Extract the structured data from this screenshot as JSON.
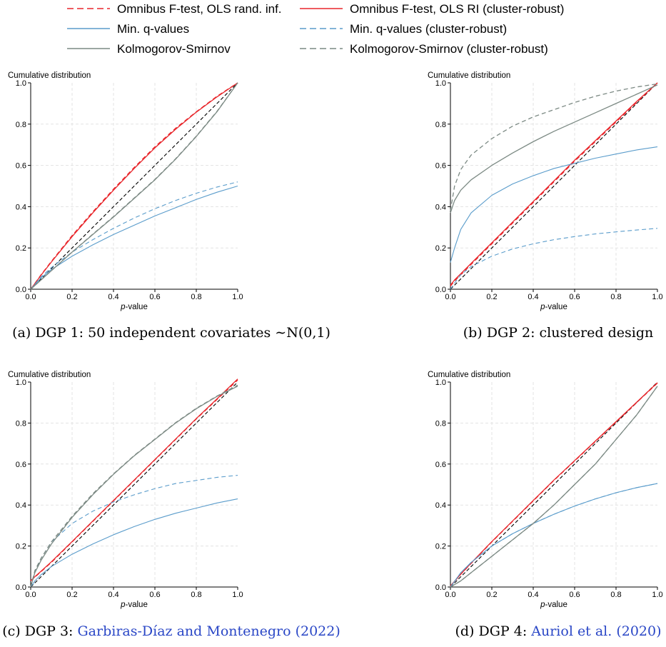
{
  "legend": {
    "items": [
      {
        "label": "Omnibus F-test, OLS rand. inf.",
        "color": "#e8262b",
        "dash": "dashed"
      },
      {
        "label": "Omnibus F-test, OLS RI (cluster-robust)",
        "color": "#e8262b",
        "dash": "solid"
      },
      {
        "label": "Min. q-values",
        "color": "#5a9ccb",
        "dash": "solid"
      },
      {
        "label": "Min. q-values (cluster-robust)",
        "color": "#5a9ccb",
        "dash": "dashed"
      },
      {
        "label": "Kolmogorov-Smirnov",
        "color": "#7c8a84",
        "dash": "solid"
      },
      {
        "label": "Kolmogorov-Smirnov (cluster-robust)",
        "color": "#7c8a84",
        "dash": "dashed"
      }
    ]
  },
  "colors": {
    "red": "#e8262b",
    "blue": "#5a9ccb",
    "gray": "#7c8a84",
    "diagonal": "#000000",
    "grid": "#e3e3e3"
  },
  "chart_data": [
    {
      "type": "line",
      "ylabel": "Cumulative distribution",
      "xlabel": "p-value",
      "xlim": [
        0,
        1
      ],
      "ylim": [
        0,
        1
      ],
      "xticks": [
        "0.0",
        "0.2",
        "0.4",
        "0.6",
        "0.8",
        "1.0"
      ],
      "yticks": [
        "0.0",
        "0.2",
        "0.4",
        "0.6",
        "0.8",
        "1.0"
      ],
      "grid": true,
      "caption": "(a) DGP 1: 50 independent covariates ∼N(0,1)",
      "x": [
        0,
        0.05,
        0.1,
        0.2,
        0.3,
        0.4,
        0.5,
        0.6,
        0.7,
        0.8,
        0.9,
        1.0
      ],
      "series": [
        {
          "name": "45-degree line",
          "style": "diag",
          "values": [
            0,
            0.05,
            0.1,
            0.2,
            0.3,
            0.4,
            0.5,
            0.6,
            0.7,
            0.8,
            0.9,
            1.0
          ]
        },
        {
          "name": "Omnibus F-test, OLS rand. inf.",
          "style": "red-dash",
          "values": [
            0,
            0.07,
            0.135,
            0.26,
            0.375,
            0.485,
            0.59,
            0.69,
            0.78,
            0.86,
            0.935,
            1.0
          ]
        },
        {
          "name": "Omnibus F-test, OLS RI (cluster-robust)",
          "style": "red-solid",
          "values": [
            0,
            0.068,
            0.132,
            0.255,
            0.37,
            0.48,
            0.585,
            0.685,
            0.775,
            0.858,
            0.932,
            1.0
          ]
        },
        {
          "name": "Min. q-values",
          "style": "blue-solid",
          "values": [
            0,
            0.055,
            0.095,
            0.16,
            0.215,
            0.265,
            0.31,
            0.355,
            0.395,
            0.435,
            0.47,
            0.5
          ]
        },
        {
          "name": "Min. q-values (cluster-robust)",
          "style": "blue-dash",
          "values": [
            0,
            0.06,
            0.105,
            0.18,
            0.24,
            0.295,
            0.345,
            0.39,
            0.43,
            0.465,
            0.495,
            0.52
          ]
        },
        {
          "name": "Kolmogorov-Smirnov",
          "style": "gray-solid",
          "values": [
            0,
            0.045,
            0.09,
            0.18,
            0.265,
            0.35,
            0.44,
            0.53,
            0.63,
            0.74,
            0.86,
            1.0
          ]
        },
        {
          "name": "Kolmogorov-Smirnov (cluster-robust)",
          "style": "gray-dash",
          "values": [
            0,
            0.045,
            0.09,
            0.18,
            0.267,
            0.352,
            0.442,
            0.532,
            0.632,
            0.742,
            0.862,
            1.0
          ]
        }
      ]
    },
    {
      "type": "line",
      "ylabel": "Cumulative distribution",
      "xlabel": "p-value",
      "xlim": [
        0,
        1
      ],
      "ylim": [
        0,
        1
      ],
      "xticks": [
        "0.0",
        "0.2",
        "0.4",
        "0.6",
        "0.8",
        "1.0"
      ],
      "yticks": [
        "0.0",
        "0.2",
        "0.4",
        "0.6",
        "0.8",
        "1.0"
      ],
      "grid": true,
      "caption": "(b) DGP 2: clustered design",
      "x": [
        0,
        0.02,
        0.05,
        0.1,
        0.2,
        0.3,
        0.4,
        0.5,
        0.6,
        0.7,
        0.8,
        0.9,
        1.0
      ],
      "series": [
        {
          "name": "45-degree line",
          "style": "diag",
          "values": [
            0,
            0.02,
            0.05,
            0.1,
            0.2,
            0.3,
            0.4,
            0.5,
            0.6,
            0.7,
            0.8,
            0.9,
            1.0
          ]
        },
        {
          "name": "Omnibus F-test, OLS rand. inf.",
          "style": "red-dash",
          "values": [
            0.015,
            0.04,
            0.07,
            0.12,
            0.22,
            0.32,
            0.42,
            0.52,
            0.62,
            0.715,
            0.81,
            0.905,
            1.0
          ]
        },
        {
          "name": "Omnibus F-test, OLS RI (cluster-robust)",
          "style": "red-solid",
          "values": [
            0.02,
            0.045,
            0.075,
            0.125,
            0.225,
            0.325,
            0.425,
            0.525,
            0.625,
            0.72,
            0.815,
            0.91,
            1.0
          ]
        },
        {
          "name": "Min. q-values",
          "style": "blue-solid",
          "values": [
            0.13,
            0.2,
            0.29,
            0.37,
            0.455,
            0.51,
            0.55,
            0.585,
            0.61,
            0.635,
            0.655,
            0.675,
            0.69
          ]
        },
        {
          "name": "Min. q-values (cluster-robust)",
          "style": "blue-dash",
          "values": [
            0.0,
            0.03,
            0.07,
            0.11,
            0.16,
            0.195,
            0.22,
            0.24,
            0.255,
            0.268,
            0.278,
            0.287,
            0.295
          ]
        },
        {
          "name": "Kolmogorov-Smirnov",
          "style": "gray-solid",
          "values": [
            0.37,
            0.43,
            0.48,
            0.53,
            0.6,
            0.66,
            0.715,
            0.765,
            0.81,
            0.855,
            0.9,
            0.945,
            0.99
          ]
        },
        {
          "name": "Kolmogorov-Smirnov (cluster-robust)",
          "style": "gray-dash",
          "values": [
            0.38,
            0.5,
            0.58,
            0.65,
            0.73,
            0.79,
            0.835,
            0.87,
            0.905,
            0.935,
            0.96,
            0.98,
            0.995
          ]
        }
      ]
    },
    {
      "type": "line",
      "ylabel": "Cumulative distribution",
      "xlabel": "p-value",
      "xlim": [
        0,
        1
      ],
      "ylim": [
        0,
        1
      ],
      "xticks": [
        "0.0",
        "0.2",
        "0.4",
        "0.6",
        "0.8",
        "1.0"
      ],
      "yticks": [
        "0.0",
        "0.2",
        "0.4",
        "0.6",
        "0.8",
        "1.0"
      ],
      "grid": true,
      "caption_prefix": "(c) DGP 3: ",
      "caption_link": "Garbiras-Díaz and Montenegro (2022)",
      "x": [
        0,
        0.02,
        0.05,
        0.1,
        0.2,
        0.3,
        0.4,
        0.5,
        0.6,
        0.7,
        0.8,
        0.9,
        1.0
      ],
      "series": [
        {
          "name": "45-degree line",
          "style": "diag",
          "values": [
            0,
            0.02,
            0.05,
            0.1,
            0.2,
            0.3,
            0.4,
            0.5,
            0.6,
            0.7,
            0.8,
            0.9,
            1.0
          ]
        },
        {
          "name": "Omnibus F-test, OLS rand. inf.",
          "style": "red-dash",
          "values": [
            0.03,
            0.048,
            0.075,
            0.12,
            0.22,
            0.32,
            0.42,
            0.52,
            0.62,
            0.72,
            0.82,
            0.915,
            1.01
          ]
        },
        {
          "name": "Omnibus F-test, OLS RI (cluster-robust)",
          "style": "red-solid",
          "values": [
            0.03,
            0.05,
            0.077,
            0.123,
            0.222,
            0.322,
            0.422,
            0.522,
            0.622,
            0.722,
            0.822,
            0.918,
            1.015
          ]
        },
        {
          "name": "Min. q-values",
          "style": "blue-solid",
          "values": [
            0,
            0.03,
            0.06,
            0.1,
            0.16,
            0.21,
            0.255,
            0.295,
            0.33,
            0.36,
            0.385,
            0.41,
            0.43
          ]
        },
        {
          "name": "Min. q-values (cluster-robust)",
          "style": "blue-dash",
          "values": [
            0,
            0.07,
            0.14,
            0.22,
            0.31,
            0.37,
            0.415,
            0.45,
            0.48,
            0.505,
            0.52,
            0.535,
            0.545
          ]
        },
        {
          "name": "Kolmogorov-Smirnov",
          "style": "gray-solid",
          "values": [
            0,
            0.07,
            0.13,
            0.21,
            0.34,
            0.45,
            0.55,
            0.64,
            0.72,
            0.8,
            0.87,
            0.93,
            0.98
          ]
        },
        {
          "name": "Kolmogorov-Smirnov (cluster-robust)",
          "style": "gray-dash",
          "values": [
            0,
            0.08,
            0.14,
            0.22,
            0.345,
            0.455,
            0.552,
            0.642,
            0.722,
            0.802,
            0.872,
            0.932,
            0.985
          ]
        }
      ]
    },
    {
      "type": "line",
      "ylabel": "Cumulative distribution",
      "xlabel": "p-value",
      "xlim": [
        0,
        1
      ],
      "ylim": [
        0,
        1
      ],
      "xticks": [
        "0.0",
        "0.2",
        "0.4",
        "0.6",
        "0.8",
        "1.0"
      ],
      "yticks": [
        "0.0",
        "0.2",
        "0.4",
        "0.6",
        "0.8",
        "1.0"
      ],
      "grid": true,
      "caption_prefix": "(d) DGP 4: ",
      "caption_link": "Auriol et al. (2020)",
      "x": [
        0,
        0.05,
        0.1,
        0.2,
        0.3,
        0.4,
        0.5,
        0.6,
        0.7,
        0.8,
        0.9,
        1.0
      ],
      "series": [
        {
          "name": "45-degree line",
          "style": "diag",
          "values": [
            0,
            0.05,
            0.1,
            0.2,
            0.3,
            0.4,
            0.5,
            0.6,
            0.7,
            0.8,
            0.9,
            1.0
          ]
        },
        {
          "name": "Omnibus F-test, OLS rand. inf.",
          "style": "red-dash",
          "values": [
            0.005,
            0.062,
            0.115,
            0.22,
            0.32,
            0.42,
            0.52,
            0.615,
            0.71,
            0.805,
            0.9,
            0.995
          ]
        },
        {
          "name": "Omnibus F-test, OLS RI (cluster-robust)",
          "style": "red-solid",
          "values": [
            0.005,
            0.063,
            0.117,
            0.222,
            0.322,
            0.422,
            0.522,
            0.617,
            0.712,
            0.807,
            0.902,
            0.997
          ]
        },
        {
          "name": "Min. q-values",
          "style": "blue-solid",
          "values": [
            0,
            0.07,
            0.12,
            0.2,
            0.26,
            0.31,
            0.355,
            0.395,
            0.43,
            0.46,
            0.485,
            0.505
          ]
        },
        {
          "name": "Min. q-values (cluster-robust)",
          "style": "blue-dash",
          "values": [
            0,
            0.07,
            0.12,
            0.2,
            0.26,
            0.31,
            0.355,
            0.395,
            0.43,
            0.46,
            0.485,
            0.505
          ]
        },
        {
          "name": "Kolmogorov-Smirnov",
          "style": "gray-solid",
          "values": [
            0,
            0.03,
            0.07,
            0.15,
            0.23,
            0.31,
            0.4,
            0.5,
            0.6,
            0.72,
            0.84,
            0.98
          ]
        },
        {
          "name": "Kolmogorov-Smirnov (cluster-robust)",
          "style": "gray-dash",
          "values": [
            0,
            0.03,
            0.07,
            0.15,
            0.23,
            0.31,
            0.4,
            0.5,
            0.6,
            0.72,
            0.84,
            0.98
          ]
        }
      ]
    }
  ]
}
